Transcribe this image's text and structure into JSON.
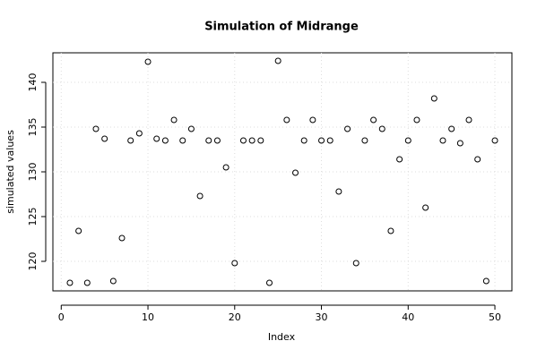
{
  "chart_data": {
    "type": "scatter",
    "title": "Simulation of Midrange",
    "x_label": "Index",
    "y_label": "simulated values",
    "x": [
      1,
      2,
      3,
      4,
      5,
      6,
      7,
      8,
      9,
      10,
      11,
      12,
      13,
      14,
      15,
      16,
      17,
      18,
      19,
      20,
      21,
      22,
      23,
      24,
      25,
      26,
      27,
      28,
      29,
      30,
      31,
      32,
      33,
      34,
      35,
      36,
      37,
      38,
      39,
      40,
      41,
      42,
      43,
      44,
      45,
      46,
      47,
      48,
      49,
      50
    ],
    "values": [
      117.6,
      123.4,
      117.6,
      134.8,
      133.7,
      117.8,
      122.6,
      133.5,
      134.3,
      142.3,
      133.7,
      133.5,
      135.8,
      133.5,
      134.8,
      127.3,
      133.5,
      133.5,
      130.5,
      119.8,
      133.5,
      133.5,
      133.5,
      117.6,
      142.4,
      135.8,
      129.9,
      133.5,
      135.8,
      133.5,
      133.5,
      127.8,
      134.8,
      119.8,
      133.5,
      135.8,
      134.8,
      123.4,
      131.4,
      133.5,
      135.8,
      126,
      138.2,
      133.5,
      134.8,
      133.2,
      135.8,
      131.4,
      117.8,
      133.5
    ],
    "color": "#000000",
    "xlim": [
      -0.96,
      51.96
    ],
    "ylim": [
      116.7,
      143.3
    ],
    "xticks": [
      0,
      10,
      20,
      30,
      40,
      50
    ],
    "yticks": [
      120,
      125,
      130,
      135,
      140
    ],
    "grid": true
  }
}
